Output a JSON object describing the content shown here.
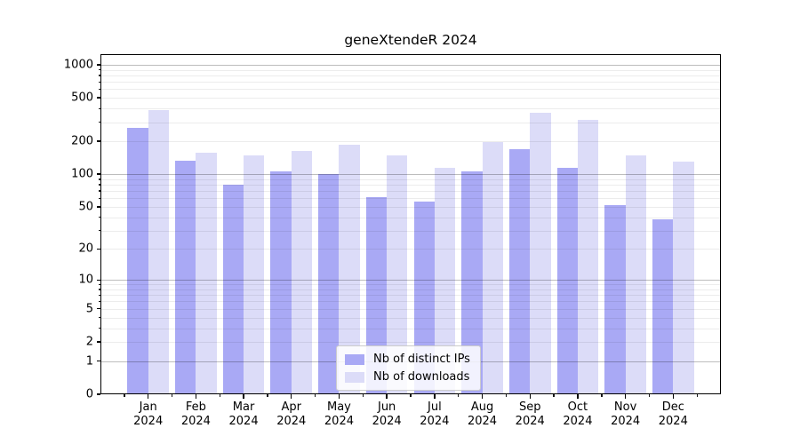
{
  "title": "geneXtendeR 2024",
  "chart_data": {
    "type": "bar",
    "title": "geneXtendeR 2024",
    "yscale": "log1p",
    "categories": [
      "Jan",
      "Feb",
      "Mar",
      "Apr",
      "May",
      "Jun",
      "Jul",
      "Aug",
      "Sep",
      "Oct",
      "Nov",
      "Dec"
    ],
    "year_label": "2024",
    "series": [
      {
        "name": "Nb of distinct IPs",
        "color": "#a9a9f5",
        "values": [
          268,
          132,
          80,
          106,
          101,
          61,
          56,
          107,
          170,
          115,
          52,
          38
        ]
      },
      {
        "name": "Nb of downloads",
        "color": "#dcdcf8",
        "values": [
          385,
          158,
          148,
          162,
          188,
          150,
          114,
          196,
          366,
          317,
          149,
          130
        ]
      }
    ],
    "yticks": [
      0,
      1,
      2,
      5,
      10,
      20,
      50,
      100,
      200,
      500,
      1000
    ],
    "decade_ticks": [
      1,
      10,
      100,
      1000
    ],
    "ylim": [
      0,
      1250
    ],
    "xlabel": "",
    "ylabel": "",
    "grid": "major+minor, drawn above bars",
    "legend_position": "lower center"
  },
  "colors": {
    "bar_dark": "#a9a9f5",
    "bar_light": "#dcdcf8",
    "grid_decade": "#bdbdbd",
    "grid_minor": "#ebebeb",
    "axis": "#000000",
    "legend_border": "#cccccc",
    "background": "#ffffff"
  }
}
